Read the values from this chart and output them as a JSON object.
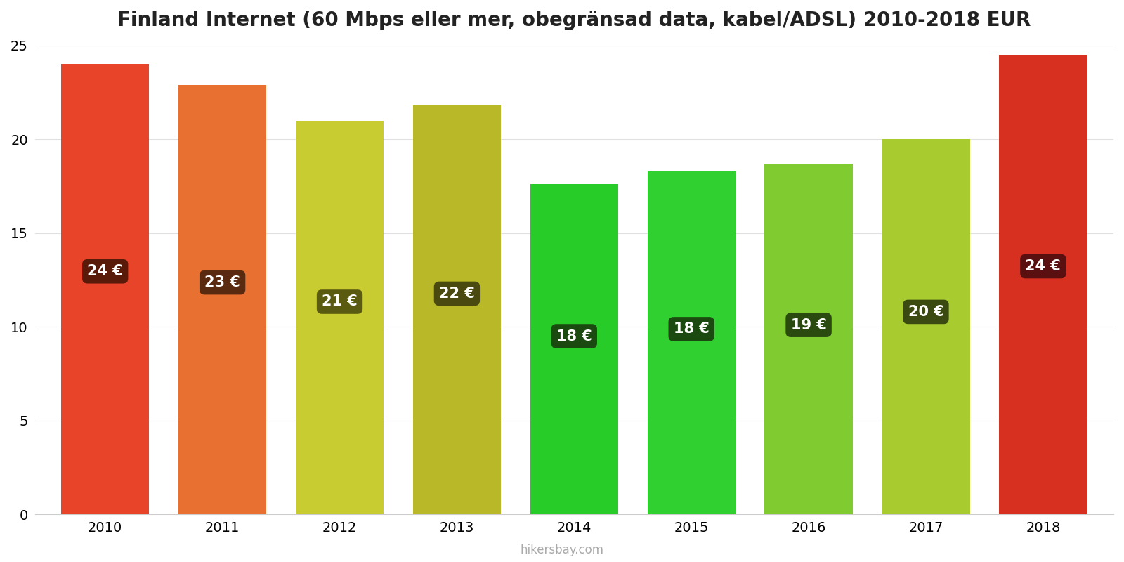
{
  "years": [
    2010,
    2011,
    2012,
    2013,
    2014,
    2015,
    2016,
    2017,
    2018
  ],
  "values": [
    24.0,
    22.9,
    21.0,
    21.8,
    17.6,
    18.3,
    18.7,
    20.0,
    24.5
  ],
  "labels": [
    "24 €",
    "23 €",
    "21 €",
    "22 €",
    "18 €",
    "18 €",
    "19 €",
    "20 €",
    "24 €"
  ],
  "bar_colors": [
    "#e8442a",
    "#e87030",
    "#c8cc30",
    "#b8b828",
    "#28cc28",
    "#30d030",
    "#80cc30",
    "#a8cc30",
    "#d83020"
  ],
  "label_bg_colors": [
    "#5a1a0a",
    "#5a2a10",
    "#5a5a10",
    "#4a4a10",
    "#1a4a10",
    "#1a4a10",
    "#2a4a10",
    "#3a4a10",
    "#5a1010"
  ],
  "title": "Finland Internet (60 Mbps eller mer, obegränsad data, kabel/ADSL) 2010-2018 EUR",
  "ylim": [
    0,
    25
  ],
  "yticks": [
    0,
    5,
    10,
    15,
    20,
    25
  ],
  "background_color": "#ffffff",
  "watermark": "hikersbay.com",
  "title_fontsize": 20,
  "label_fontsize": 15,
  "bar_width": 0.75
}
